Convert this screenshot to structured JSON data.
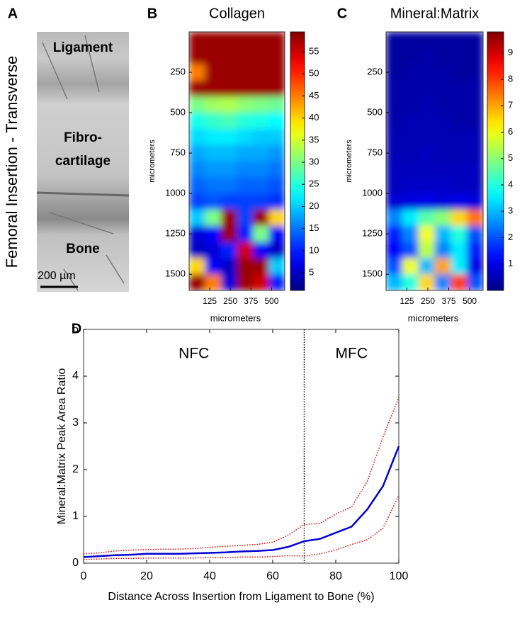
{
  "chart_data": [
    {
      "type": "image",
      "panel": "A",
      "ylabel": "Femoral Insertion - Transverse",
      "labels": [
        "Ligament",
        "Fibro-",
        "cartilage",
        "Bone"
      ],
      "scalebar": "200 µm"
    },
    {
      "type": "heatmap",
      "panel": "B",
      "title": "Collagen",
      "xlabel": "micrometers",
      "ylabel": "micrometers",
      "x": [
        48,
        145,
        242,
        338,
        435,
        532
      ],
      "y": [
        50,
        150,
        250,
        350,
        450,
        550,
        650,
        750,
        850,
        950,
        1050,
        1150,
        1250,
        1350,
        1450,
        1550
      ],
      "z": [
        [
          58,
          58,
          58,
          58,
          58,
          58
        ],
        [
          58,
          58,
          58,
          58,
          58,
          58
        ],
        [
          45,
          58,
          58,
          58,
          58,
          58
        ],
        [
          58,
          58,
          58,
          58,
          58,
          58
        ],
        [
          30,
          32,
          33,
          31,
          30,
          29
        ],
        [
          24,
          26,
          27,
          25,
          24,
          23
        ],
        [
          21,
          22,
          22,
          21,
          20,
          20
        ],
        [
          18,
          19,
          19,
          18,
          18,
          17
        ],
        [
          16,
          17,
          17,
          16,
          16,
          15
        ],
        [
          14,
          15,
          15,
          14,
          14,
          13
        ],
        [
          12,
          13,
          12,
          12,
          12,
          11
        ],
        [
          20,
          30,
          58,
          12,
          58,
          40
        ],
        [
          6,
          8,
          58,
          10,
          30,
          8
        ],
        [
          5,
          6,
          10,
          55,
          8,
          5
        ],
        [
          40,
          8,
          5,
          58,
          58,
          20
        ],
        [
          58,
          45,
          6,
          58,
          55,
          10
        ]
      ],
      "xlim": [
        0,
        580
      ],
      "ylim": [
        0,
        1600
      ],
      "y_reversed": true,
      "xticks": [
        125,
        250,
        375,
        500
      ],
      "yticks": [
        250,
        500,
        750,
        1000,
        1250,
        1500
      ],
      "clim": [
        1,
        59.5
      ],
      "cticks": [
        5,
        10,
        15,
        20,
        25,
        30,
        35,
        40,
        45,
        50,
        55
      ],
      "colormap": "jet"
    },
    {
      "type": "heatmap",
      "panel": "C",
      "title": "Mineral:Matrix",
      "xlabel": "micrometers",
      "ylabel": "micrometers",
      "x": [
        48,
        145,
        242,
        338,
        435,
        532
      ],
      "y": [
        50,
        150,
        250,
        350,
        450,
        550,
        650,
        750,
        850,
        950,
        1050,
        1150,
        1250,
        1350,
        1450,
        1550
      ],
      "z": [
        [
          0.3,
          0.3,
          0.3,
          0.3,
          0.3,
          0.3
        ],
        [
          0.3,
          0.3,
          0.4,
          0.3,
          0.3,
          0.3
        ],
        [
          0.3,
          0.4,
          0.4,
          0.4,
          0.3,
          0.3
        ],
        [
          0.4,
          0.4,
          0.4,
          0.4,
          0.4,
          0.4
        ],
        [
          0.4,
          0.4,
          0.5,
          0.4,
          0.4,
          0.4
        ],
        [
          0.4,
          0.5,
          0.5,
          0.5,
          0.4,
          0.4
        ],
        [
          0.5,
          0.5,
          0.5,
          0.5,
          0.5,
          0.5
        ],
        [
          0.5,
          0.5,
          0.6,
          0.5,
          0.5,
          0.5
        ],
        [
          0.6,
          0.6,
          0.6,
          0.6,
          0.6,
          0.6
        ],
        [
          0.6,
          0.7,
          0.7,
          0.7,
          0.6,
          0.6
        ],
        [
          0.8,
          0.9,
          1.0,
          0.9,
          1.0,
          0.9
        ],
        [
          2.5,
          3.5,
          4.5,
          5.0,
          6.5,
          7.5
        ],
        [
          1.5,
          2.5,
          6.0,
          3.0,
          4.0,
          2.0
        ],
        [
          1.2,
          2.0,
          5.5,
          2.5,
          3.5,
          1.5
        ],
        [
          2.0,
          6.0,
          3.0,
          7.0,
          3.5,
          1.0
        ],
        [
          3.0,
          4.0,
          6.5,
          2.5,
          8.0,
          2.0
        ]
      ],
      "xlim": [
        0,
        580
      ],
      "ylim": [
        0,
        1600
      ],
      "y_reversed": true,
      "xticks": [
        125,
        250,
        375,
        500
      ],
      "yticks": [
        250,
        500,
        750,
        1000,
        1250,
        1500
      ],
      "clim": [
        0,
        9.8
      ],
      "cticks": [
        1,
        2,
        3,
        4,
        5,
        6,
        7,
        8,
        9
      ],
      "colormap": "jet"
    },
    {
      "type": "line",
      "panel": "D",
      "xlabel": "Distance Across Insertion from Ligament to Bone (%)",
      "ylabel": "Mineral:Matrix Peak Area Ratio",
      "annotations": [
        "NFC",
        "MFC"
      ],
      "vline": 70,
      "x": [
        0,
        5,
        10,
        15,
        20,
        25,
        30,
        35,
        40,
        45,
        50,
        55,
        60,
        65,
        70,
        75,
        80,
        85,
        90,
        95,
        100
      ],
      "series": [
        {
          "color": "#0000d0",
          "style": "solid",
          "values": [
            0.13,
            0.15,
            0.17,
            0.18,
            0.2,
            0.2,
            0.2,
            0.21,
            0.22,
            0.23,
            0.25,
            0.26,
            0.28,
            0.35,
            0.47,
            0.52,
            0.65,
            0.78,
            1.15,
            1.65,
            2.5
          ]
        },
        {
          "color": "#e00000",
          "style": "dotted",
          "values": [
            0.2,
            0.22,
            0.26,
            0.28,
            0.29,
            0.3,
            0.3,
            0.31,
            0.34,
            0.36,
            0.38,
            0.4,
            0.45,
            0.6,
            0.83,
            0.85,
            1.05,
            1.2,
            1.75,
            2.7,
            3.55
          ]
        },
        {
          "color": "#e00000",
          "style": "dotted",
          "values": [
            0.08,
            0.09,
            0.1,
            0.1,
            0.11,
            0.11,
            0.11,
            0.11,
            0.12,
            0.12,
            0.13,
            0.13,
            0.14,
            0.16,
            0.15,
            0.2,
            0.28,
            0.4,
            0.5,
            0.75,
            1.45
          ]
        }
      ],
      "xlim": [
        0,
        100
      ],
      "ylim": [
        0,
        5
      ],
      "xticks": [
        0,
        20,
        40,
        60,
        80,
        100
      ],
      "yticks": [
        0,
        1,
        2,
        3,
        4,
        5
      ]
    }
  ]
}
